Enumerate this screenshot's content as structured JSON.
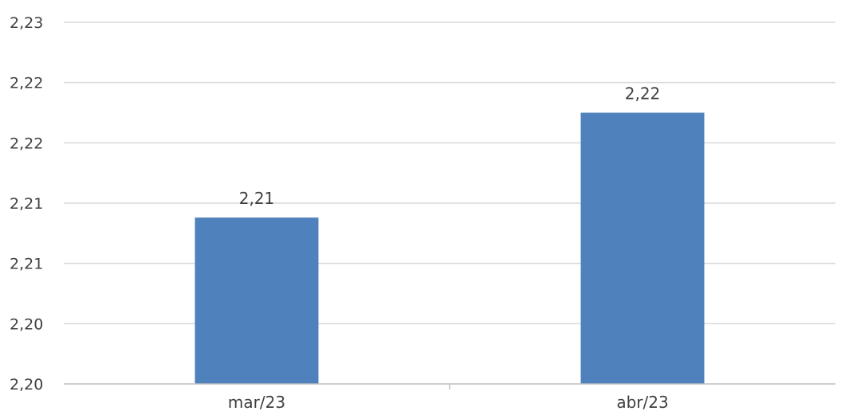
{
  "chart_data": {
    "type": "bar",
    "title": "",
    "xlabel": "",
    "ylabel": "",
    "categories": [
      "mar/23",
      "abr/23"
    ],
    "values": [
      2.2113,
      2.22
    ],
    "data_labels": [
      "2,21",
      "2,22"
    ],
    "ylim": [
      2.1975,
      2.2275
    ],
    "yticks": [
      2.1975,
      2.2025,
      2.2075,
      2.2125,
      2.2175,
      2.2225,
      2.2275
    ],
    "ytick_labels": [
      "2,20",
      "2,20",
      "2,21",
      "2,21",
      "2,22",
      "2,22",
      "2,23"
    ],
    "grid": true,
    "legend": "none",
    "bar_color": "#4f81bd"
  }
}
